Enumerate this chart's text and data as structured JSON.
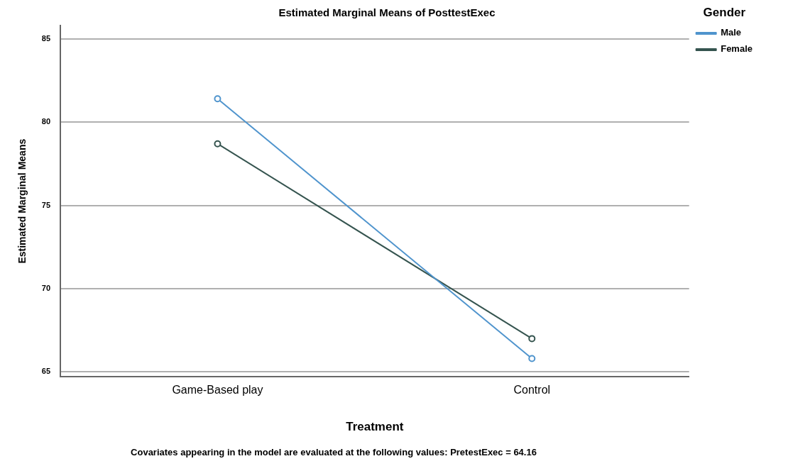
{
  "chart_data": {
    "type": "line",
    "title": "Estimated Marginal Means of PosttestExec",
    "xlabel": "Treatment",
    "ylabel": "Estimated Marginal Means",
    "legend_title": "Gender",
    "categories": [
      "Game-Based play",
      "Control"
    ],
    "series": [
      {
        "name": "Male",
        "color": "#4f94cd",
        "values": [
          81.4,
          65.8
        ]
      },
      {
        "name": "Female",
        "color": "#35544f",
        "values": [
          78.7,
          67.0
        ]
      }
    ],
    "ylim": [
      64.7,
      85.8
    ],
    "yticks": [
      65,
      70,
      75,
      80,
      85
    ],
    "grid": "y",
    "legend": "top right",
    "marker": "circle",
    "line_style": "solid",
    "annotations": [
      "Covariates appearing in the model are evaluated at the following values: PretestExec = 64.16"
    ]
  }
}
